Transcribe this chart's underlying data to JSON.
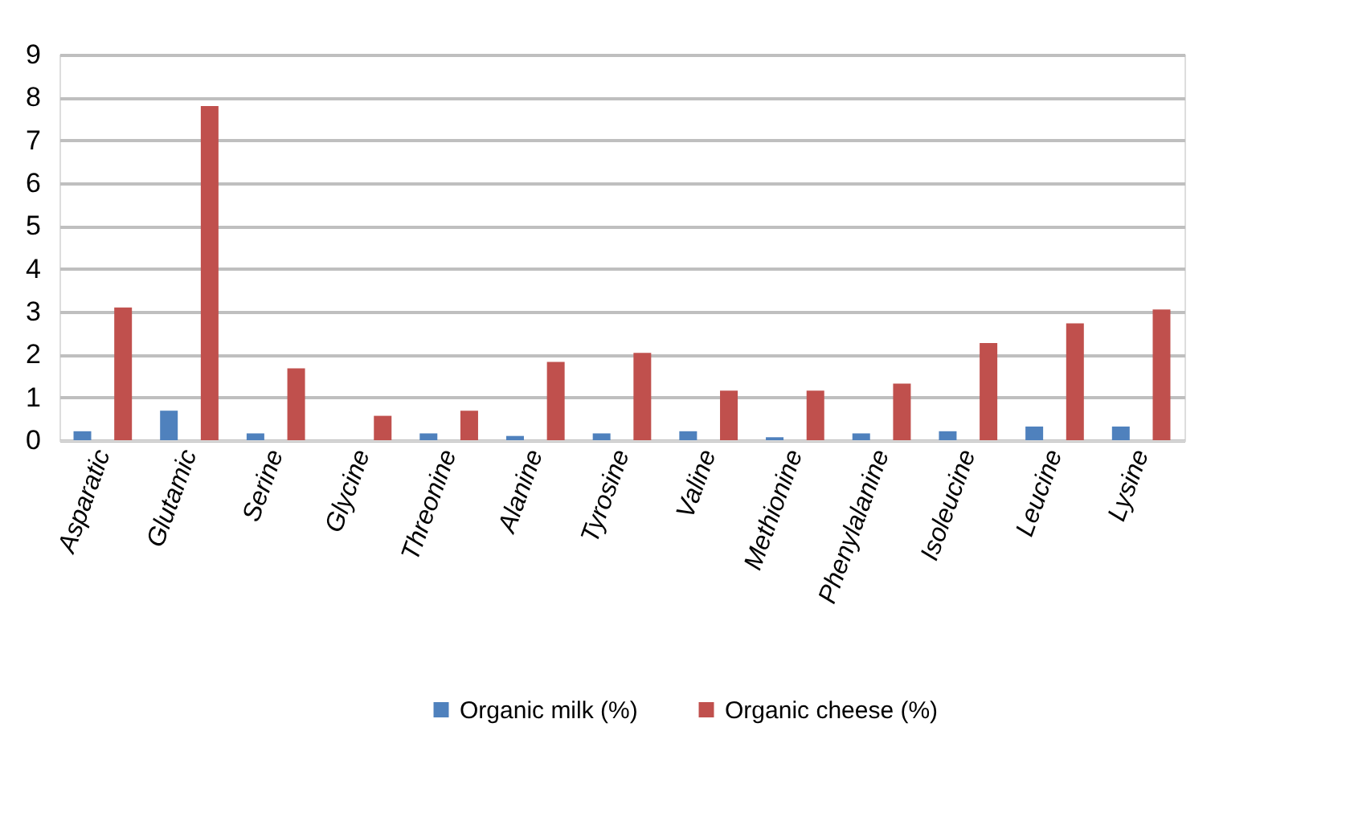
{
  "chart_data": {
    "type": "bar",
    "categories": [
      "Asparatic",
      "Glutamic",
      "Serine",
      "Glycine",
      "Threonine",
      "Alanine",
      "Tyrosine",
      "Valine",
      "Methionine",
      "Phenylalanine",
      "Isoleucine",
      "Leucine",
      "Lysine"
    ],
    "series": [
      {
        "name": "Organic milk  (%)",
        "color": "#4f81bd",
        "values": [
          0.21,
          0.69,
          0.16,
          null,
          0.16,
          0.1,
          0.16,
          0.21,
          0.07,
          0.16,
          0.21,
          0.32,
          0.32
        ]
      },
      {
        "name": "Organic cheese (%)",
        "color": "#c0504d",
        "values": [
          3.1,
          7.8,
          1.68,
          0.57,
          0.69,
          1.83,
          2.04,
          1.16,
          1.16,
          1.32,
          2.27,
          2.73,
          3.05
        ]
      }
    ],
    "ylim": [
      0,
      9
    ],
    "yticks": [
      0,
      1,
      2,
      3,
      4,
      5,
      6,
      7,
      8,
      9
    ],
    "grid": "y",
    "legend": "bottom"
  }
}
